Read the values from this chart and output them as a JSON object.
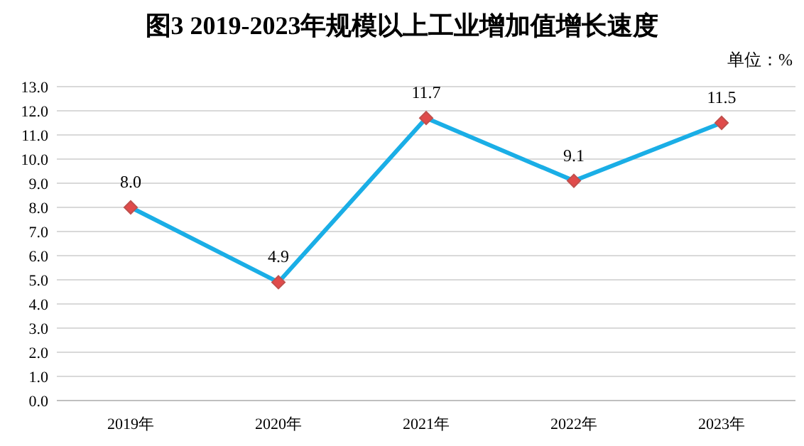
{
  "chart_data": {
    "type": "line",
    "title": "图3 2019-2023年规模以上工业增加值增长速度",
    "annotations": [
      "单位：%"
    ],
    "categories": [
      "2019年",
      "2020年",
      "2021年",
      "2022年",
      "2023年"
    ],
    "series": [
      {
        "color": "#1aaee6",
        "values": [
          8.0,
          4.9,
          11.7,
          9.1,
          11.5
        ],
        "value_labels": [
          "8.0",
          "4.9",
          "11.7",
          "9.1",
          "11.5"
        ]
      }
    ],
    "ylim": [
      0,
      13
    ],
    "yticks": [
      {
        "value": 0,
        "label": "0.0"
      },
      {
        "value": 1,
        "label": "1.0"
      },
      {
        "value": 2,
        "label": "2.0"
      },
      {
        "value": 3,
        "label": "3.0"
      },
      {
        "value": 4,
        "label": "4.0"
      },
      {
        "value": 5,
        "label": "5.0"
      },
      {
        "value": 6,
        "label": "6.0"
      },
      {
        "value": 7,
        "label": "7.0"
      },
      {
        "value": 8,
        "label": "8.0"
      },
      {
        "value": 9,
        "label": "9.0"
      },
      {
        "value": 10,
        "label": "10.0"
      },
      {
        "value": 11,
        "label": "11.0"
      },
      {
        "value": 12,
        "label": "12.0"
      },
      {
        "value": 13,
        "label": "13.0"
      }
    ],
    "grid": "y",
    "marker": "diamond",
    "line_style": "solid"
  }
}
